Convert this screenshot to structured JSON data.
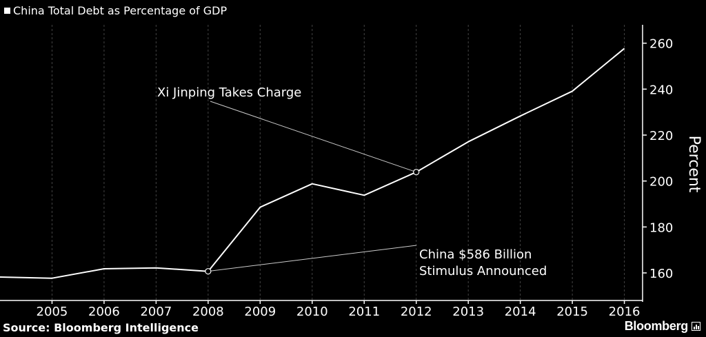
{
  "legend": {
    "label": "China Total Debt as Percentage of GDP"
  },
  "source": "Source: Bloomberg Intelligence",
  "brand": "Bloomberg",
  "colors": {
    "background": "#000000",
    "line": "#ffffff",
    "grid": "#444444"
  },
  "chart_data": {
    "type": "line",
    "ylabel": "Percent",
    "ylim": [
      148,
      268
    ],
    "xlim": [
      2004.0,
      2016.35
    ],
    "x_ticks": [
      2005,
      2006,
      2007,
      2008,
      2009,
      2010,
      2011,
      2012,
      2013,
      2014,
      2015,
      2016
    ],
    "y_ticks": [
      160,
      180,
      200,
      220,
      240,
      260
    ],
    "grid": "vertical dashed",
    "legend_position": "top-left",
    "series": [
      {
        "name": "China Total Debt as Percentage of GDP",
        "x": [
          2004.0,
          2005.0,
          2006.0,
          2007.0,
          2008.0,
          2009.0,
          2010.0,
          2011.0,
          2012.0,
          2013.0,
          2014.0,
          2015.0,
          2016.0
        ],
        "y": [
          158.2,
          157.7,
          161.8,
          162.2,
          160.7,
          188.6,
          198.8,
          193.8,
          203.9,
          217.1,
          228.3,
          239.1,
          257.7
        ]
      }
    ],
    "annotations": [
      {
        "lines": [
          "Xi Jinping Takes Charge"
        ],
        "x": 2012.0,
        "y": 203.9
      },
      {
        "lines": [
          "China $586 Billion",
          "Stimulus Announced"
        ],
        "x": 2008.0,
        "y": 160.7
      }
    ]
  }
}
